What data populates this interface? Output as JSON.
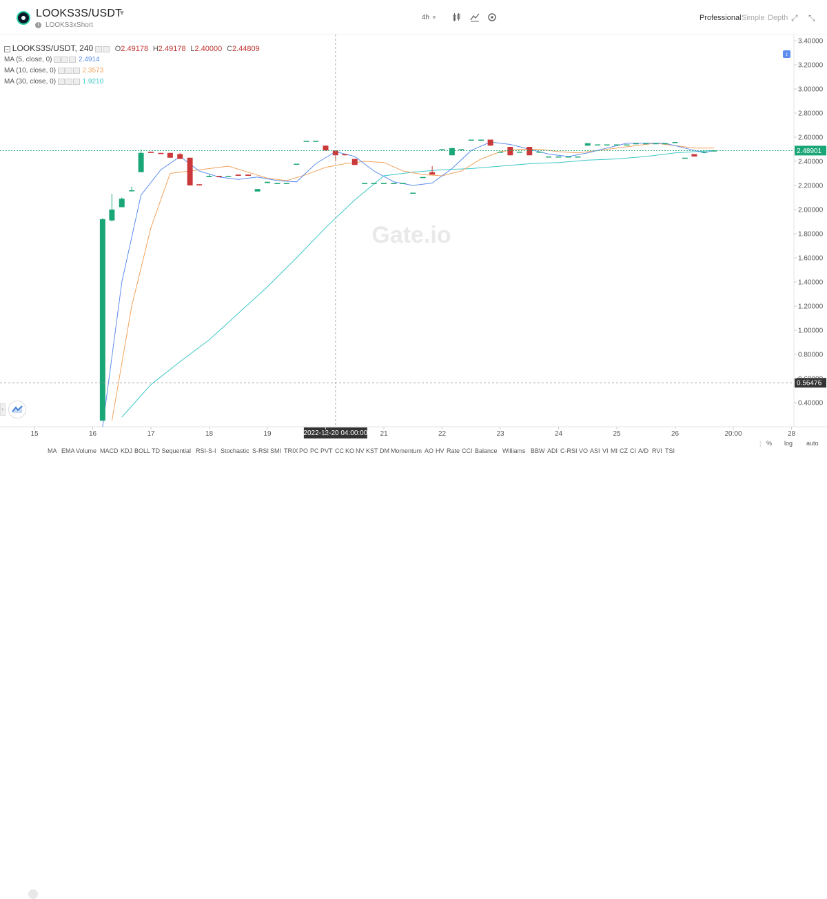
{
  "header": {
    "pair": "LOOKS3S/USDT",
    "subtitle": "LOOKS3xShort",
    "interval": "4h",
    "views": [
      "Professional",
      "Simple",
      "Depth"
    ]
  },
  "legend": {
    "symbol": "LOOKS3S/USDT, 240",
    "open_k": "O",
    "open": "2.49178",
    "high_k": "H",
    "high": "2.49178",
    "low_k": "L",
    "low": "2.40000",
    "close_k": "C",
    "close": "2.44809",
    "ma": [
      {
        "label": "MA (5, close, 0)",
        "value": "2.4914",
        "color": "#5b8def"
      },
      {
        "label": "MA (10, close, 0)",
        "value": "2.3573",
        "color": "#f2a25b"
      },
      {
        "label": "MA (30, close, 0)",
        "value": "1.9210",
        "color": "#3cc7c7"
      }
    ]
  },
  "chart_data": {
    "type": "candlestick",
    "y_ticks": [
      "3.40000",
      "3.20000",
      "3.00000",
      "2.80000",
      "2.60000",
      "2.40000",
      "2.20000",
      "2.00000",
      "1.80000",
      "1.60000",
      "1.40000",
      "1.20000",
      "1.00000",
      "0.80000",
      "0.60000",
      "0.40000"
    ],
    "x_ticks": [
      "15",
      "16",
      "17",
      "18",
      "19",
      "20",
      "21",
      "22",
      "23",
      "24",
      "25",
      "26",
      "20:00",
      "28"
    ],
    "last_price": "2.48901",
    "low_marker": "0.56476",
    "crosshair_label": "2022-12-20 04:00:00",
    "watermark": "Gate.io",
    "up_color": "#1aa676",
    "down_color": "#c9393a",
    "candles": [
      {
        "x": 16.17,
        "o": 0.25,
        "h": 1.93,
        "l": 0.25,
        "c": 1.92
      },
      {
        "x": 16.33,
        "o": 1.91,
        "h": 2.13,
        "l": 1.9,
        "c": 2.0
      },
      {
        "x": 16.5,
        "o": 2.02,
        "h": 2.1,
        "l": 2.02,
        "c": 2.09
      },
      {
        "x": 16.67,
        "o": 2.16,
        "h": 2.19,
        "l": 2.15,
        "c": 2.16
      },
      {
        "x": 16.83,
        "o": 2.31,
        "h": 2.5,
        "l": 2.31,
        "c": 2.47
      },
      {
        "x": 17.0,
        "o": 2.48,
        "h": 2.48,
        "l": 2.47,
        "c": 2.47
      },
      {
        "x": 17.17,
        "o": 2.47,
        "h": 2.47,
        "l": 2.46,
        "c": 2.46
      },
      {
        "x": 17.33,
        "o": 2.47,
        "h": 2.47,
        "l": 2.43,
        "c": 2.43
      },
      {
        "x": 17.5,
        "o": 2.46,
        "h": 2.47,
        "l": 2.42,
        "c": 2.42
      },
      {
        "x": 17.67,
        "o": 2.43,
        "h": 2.43,
        "l": 2.2,
        "c": 2.2
      },
      {
        "x": 17.83,
        "o": 2.21,
        "h": 2.21,
        "l": 2.2,
        "c": 2.2
      },
      {
        "x": 18.0,
        "o": 2.27,
        "h": 2.29,
        "l": 2.27,
        "c": 2.28
      },
      {
        "x": 18.17,
        "o": 2.28,
        "h": 2.28,
        "l": 2.27,
        "c": 2.27
      },
      {
        "x": 18.33,
        "o": 2.28,
        "h": 2.28,
        "l": 2.28,
        "c": 2.28
      },
      {
        "x": 18.5,
        "o": 2.29,
        "h": 2.29,
        "l": 2.28,
        "c": 2.28
      },
      {
        "x": 18.67,
        "o": 2.29,
        "h": 2.29,
        "l": 2.28,
        "c": 2.28
      },
      {
        "x": 18.83,
        "o": 2.15,
        "h": 2.17,
        "l": 2.15,
        "c": 2.17
      },
      {
        "x": 19.0,
        "o": 2.22,
        "h": 2.23,
        "l": 2.22,
        "c": 2.23
      },
      {
        "x": 19.17,
        "o": 2.22,
        "h": 2.22,
        "l": 2.22,
        "c": 2.22
      },
      {
        "x": 19.33,
        "o": 2.22,
        "h": 2.22,
        "l": 2.22,
        "c": 2.22
      },
      {
        "x": 19.5,
        "o": 2.38,
        "h": 2.38,
        "l": 2.38,
        "c": 2.38
      },
      {
        "x": 19.67,
        "o": 2.57,
        "h": 2.57,
        "l": 2.57,
        "c": 2.57
      },
      {
        "x": 19.83,
        "o": 2.57,
        "h": 2.57,
        "l": 2.57,
        "c": 2.57
      },
      {
        "x": 20.0,
        "o": 2.53,
        "h": 2.53,
        "l": 2.49,
        "c": 2.49
      },
      {
        "x": 20.17,
        "o": 2.49,
        "h": 2.49,
        "l": 2.4,
        "c": 2.45
      },
      {
        "x": 20.33,
        "o": 2.46,
        "h": 2.46,
        "l": 2.45,
        "c": 2.45
      },
      {
        "x": 20.5,
        "o": 2.42,
        "h": 2.42,
        "l": 2.37,
        "c": 2.37
      },
      {
        "x": 20.67,
        "o": 2.22,
        "h": 2.22,
        "l": 2.22,
        "c": 2.22
      },
      {
        "x": 20.83,
        "o": 2.22,
        "h": 2.22,
        "l": 2.22,
        "c": 2.22
      },
      {
        "x": 21.0,
        "o": 2.22,
        "h": 2.22,
        "l": 2.22,
        "c": 2.22
      },
      {
        "x": 21.17,
        "o": 2.22,
        "h": 2.22,
        "l": 2.22,
        "c": 2.22
      },
      {
        "x": 21.33,
        "o": 2.22,
        "h": 2.22,
        "l": 2.22,
        "c": 2.22
      },
      {
        "x": 21.5,
        "o": 2.14,
        "h": 2.14,
        "l": 2.14,
        "c": 2.14
      },
      {
        "x": 21.67,
        "o": 2.27,
        "h": 2.27,
        "l": 2.27,
        "c": 2.27
      },
      {
        "x": 21.83,
        "o": 2.31,
        "h": 2.36,
        "l": 2.29,
        "c": 2.29
      },
      {
        "x": 22.0,
        "o": 2.5,
        "h": 2.5,
        "l": 2.5,
        "c": 2.5
      },
      {
        "x": 22.17,
        "o": 2.45,
        "h": 2.51,
        "l": 2.45,
        "c": 2.51
      },
      {
        "x": 22.33,
        "o": 2.5,
        "h": 2.5,
        "l": 2.5,
        "c": 2.5
      },
      {
        "x": 22.5,
        "o": 2.58,
        "h": 2.58,
        "l": 2.58,
        "c": 2.58
      },
      {
        "x": 22.67,
        "o": 2.58,
        "h": 2.58,
        "l": 2.58,
        "c": 2.58
      },
      {
        "x": 22.83,
        "o": 2.58,
        "h": 2.58,
        "l": 2.53,
        "c": 2.53
      },
      {
        "x": 23.0,
        "o": 2.48,
        "h": 2.48,
        "l": 2.48,
        "c": 2.48
      },
      {
        "x": 23.17,
        "o": 2.52,
        "h": 2.52,
        "l": 2.45,
        "c": 2.45
      },
      {
        "x": 23.33,
        "o": 2.48,
        "h": 2.48,
        "l": 2.48,
        "c": 2.48
      },
      {
        "x": 23.5,
        "o": 2.52,
        "h": 2.52,
        "l": 2.45,
        "c": 2.45
      },
      {
        "x": 23.67,
        "o": 2.48,
        "h": 2.48,
        "l": 2.48,
        "c": 2.48
      },
      {
        "x": 23.83,
        "o": 2.44,
        "h": 2.44,
        "l": 2.44,
        "c": 2.44
      },
      {
        "x": 24.0,
        "o": 2.44,
        "h": 2.44,
        "l": 2.44,
        "c": 2.44
      },
      {
        "x": 24.17,
        "o": 2.44,
        "h": 2.44,
        "l": 2.44,
        "c": 2.44
      },
      {
        "x": 24.33,
        "o": 2.44,
        "h": 2.44,
        "l": 2.44,
        "c": 2.44
      },
      {
        "x": 24.5,
        "o": 2.53,
        "h": 2.55,
        "l": 2.53,
        "c": 2.55
      },
      {
        "x": 24.67,
        "o": 2.54,
        "h": 2.54,
        "l": 2.54,
        "c": 2.54
      },
      {
        "x": 24.83,
        "o": 2.54,
        "h": 2.54,
        "l": 2.54,
        "c": 2.54
      },
      {
        "x": 25.0,
        "o": 2.54,
        "h": 2.54,
        "l": 2.54,
        "c": 2.54
      },
      {
        "x": 25.17,
        "o": 2.54,
        "h": 2.54,
        "l": 2.54,
        "c": 2.54
      },
      {
        "x": 25.33,
        "o": 2.55,
        "h": 2.55,
        "l": 2.55,
        "c": 2.55
      },
      {
        "x": 25.5,
        "o": 2.55,
        "h": 2.55,
        "l": 2.55,
        "c": 2.55
      },
      {
        "x": 25.67,
        "o": 2.55,
        "h": 2.55,
        "l": 2.55,
        "c": 2.55
      },
      {
        "x": 25.83,
        "o": 2.55,
        "h": 2.55,
        "l": 2.55,
        "c": 2.55
      },
      {
        "x": 26.0,
        "o": 2.56,
        "h": 2.56,
        "l": 2.56,
        "c": 2.56
      },
      {
        "x": 26.17,
        "o": 2.43,
        "h": 2.43,
        "l": 2.43,
        "c": 2.43
      },
      {
        "x": 26.33,
        "o": 2.46,
        "h": 2.46,
        "l": 2.44,
        "c": 2.44
      },
      {
        "x": 26.5,
        "o": 2.48,
        "h": 2.48,
        "l": 2.48,
        "c": 2.48
      },
      {
        "x": 26.67,
        "o": 2.49,
        "h": 2.49,
        "l": 2.49,
        "c": 2.49
      }
    ],
    "ma5": [
      [
        16.17,
        0.2
      ],
      [
        16.5,
        1.4
      ],
      [
        16.83,
        2.12
      ],
      [
        17.17,
        2.33
      ],
      [
        17.5,
        2.44
      ],
      [
        17.83,
        2.32
      ],
      [
        18.17,
        2.27
      ],
      [
        18.5,
        2.25
      ],
      [
        18.83,
        2.27
      ],
      [
        19.17,
        2.24
      ],
      [
        19.5,
        2.23
      ],
      [
        19.83,
        2.38
      ],
      [
        20.17,
        2.48
      ],
      [
        20.5,
        2.44
      ],
      [
        20.83,
        2.32
      ],
      [
        21.17,
        2.23
      ],
      [
        21.5,
        2.2
      ],
      [
        21.83,
        2.22
      ],
      [
        22.17,
        2.34
      ],
      [
        22.5,
        2.49
      ],
      [
        22.83,
        2.56
      ],
      [
        23.17,
        2.54
      ],
      [
        23.5,
        2.5
      ],
      [
        23.83,
        2.46
      ],
      [
        24.17,
        2.44
      ],
      [
        24.5,
        2.47
      ],
      [
        24.83,
        2.51
      ],
      [
        25.17,
        2.55
      ],
      [
        25.5,
        2.55
      ],
      [
        25.83,
        2.55
      ],
      [
        26.17,
        2.51
      ],
      [
        26.5,
        2.47
      ],
      [
        26.67,
        2.49
      ]
    ],
    "ma10": [
      [
        16.33,
        0.25
      ],
      [
        16.67,
        1.2
      ],
      [
        17.0,
        1.85
      ],
      [
        17.33,
        2.3
      ],
      [
        17.67,
        2.32
      ],
      [
        18.0,
        2.34
      ],
      [
        18.33,
        2.36
      ],
      [
        18.67,
        2.31
      ],
      [
        19.0,
        2.26
      ],
      [
        19.33,
        2.24
      ],
      [
        19.67,
        2.29
      ],
      [
        20.0,
        2.35
      ],
      [
        20.33,
        2.38
      ],
      [
        20.67,
        2.4
      ],
      [
        21.0,
        2.39
      ],
      [
        21.33,
        2.32
      ],
      [
        21.67,
        2.29
      ],
      [
        22.0,
        2.28
      ],
      [
        22.33,
        2.32
      ],
      [
        22.67,
        2.42
      ],
      [
        23.0,
        2.48
      ],
      [
        23.33,
        2.5
      ],
      [
        23.67,
        2.5
      ],
      [
        24.0,
        2.48
      ],
      [
        24.33,
        2.47
      ],
      [
        24.67,
        2.49
      ],
      [
        25.0,
        2.51
      ],
      [
        25.33,
        2.53
      ],
      [
        25.67,
        2.55
      ],
      [
        26.0,
        2.53
      ],
      [
        26.33,
        2.51
      ],
      [
        26.67,
        2.51
      ]
    ],
    "ma30": [
      [
        16.5,
        0.28
      ],
      [
        17.0,
        0.55
      ],
      [
        17.5,
        0.74
      ],
      [
        18.0,
        0.92
      ],
      [
        18.5,
        1.14
      ],
      [
        19.0,
        1.36
      ],
      [
        19.5,
        1.6
      ],
      [
        20.0,
        1.85
      ],
      [
        20.5,
        2.08
      ],
      [
        21.0,
        2.28
      ],
      [
        21.5,
        2.31
      ],
      [
        22.0,
        2.33
      ],
      [
        22.5,
        2.34
      ],
      [
        23.0,
        2.36
      ],
      [
        23.5,
        2.38
      ],
      [
        24.0,
        2.39
      ],
      [
        24.5,
        2.41
      ],
      [
        25.0,
        2.42
      ],
      [
        25.5,
        2.44
      ],
      [
        26.0,
        2.47
      ],
      [
        26.67,
        2.49
      ]
    ]
  },
  "indicators": [
    "MA",
    "EMA",
    "Volume",
    "MACD",
    "KDJ",
    "BOLL",
    "TD Sequential",
    "RSI-S-I",
    "Stochastic",
    "S-RSI",
    "SMI",
    "TRIX",
    "PO",
    "PC",
    "PVT",
    "CC",
    "KO",
    "NV",
    "KST",
    "DM",
    "Momentum",
    "AO",
    "HV",
    "Rate",
    "CCI",
    "Balance",
    "Williams",
    "BBW",
    "ADI",
    "C-RSI",
    "VO",
    "ASI",
    "VI",
    "MI",
    "CZ",
    "CI",
    "A/D",
    "RVI",
    "TSI"
  ],
  "scale_options": [
    "%",
    "log",
    "auto"
  ]
}
